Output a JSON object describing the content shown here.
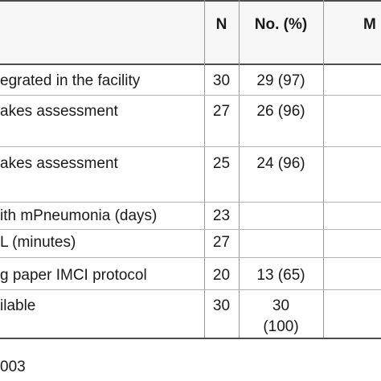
{
  "header": {
    "col_n": "N",
    "col_no_pct": "No. (%)",
    "col_m": "M"
  },
  "rows": [
    {
      "label": "egrated in the facility",
      "n": "30",
      "pct": "29 (97)"
    },
    {
      "label": "akes assessment",
      "n": "27",
      "pct": "26 (96)"
    },
    {
      "label": "akes assessment",
      "n": "25",
      "pct": "24 (96)"
    },
    {
      "label": "ith mPneumonia (days)",
      "n": "23",
      "pct": ""
    },
    {
      "label": "L (minutes)",
      "n": "27",
      "pct": ""
    },
    {
      "label": "g paper IMCI protocol",
      "n": "20",
      "pct": "13 (65)"
    },
    {
      "label": "ilable",
      "n": "30",
      "pct_line1": "30",
      "pct_line2": "(100)"
    }
  ],
  "footer": {
    "text": "003"
  }
}
